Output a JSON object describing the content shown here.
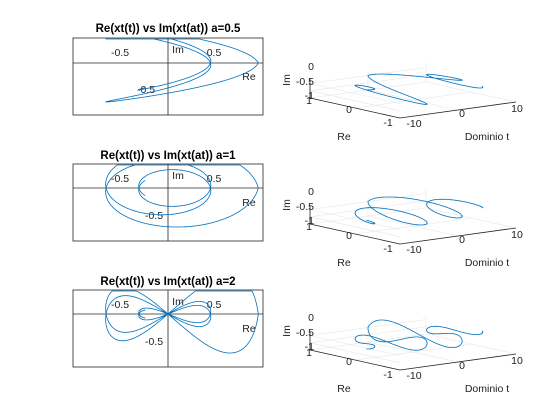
{
  "chart_data": [
    {
      "type": "line",
      "title": "Re(xt(t)) vs Im(xt(at))  a=0.5",
      "a": 0.5,
      "axis_annotations": {
        "re": "Re",
        "im": "Im"
      },
      "x_ticks": [
        "-0.5",
        "0.5"
      ],
      "y_ticks": [
        "-0.5"
      ],
      "xlim": [
        -1,
        1
      ],
      "ylim": [
        -1,
        0.5
      ]
    },
    {
      "type": "line",
      "title": "Re(xt(t)) vs Im(xt(at))  a=1",
      "a": 1,
      "axis_annotations": {
        "re": "Re",
        "im": "Im"
      },
      "x_ticks": [
        "-0.5",
        "0.5"
      ],
      "y_ticks": [
        "-0.5"
      ],
      "xlim": [
        -1,
        1
      ],
      "ylim": [
        -1,
        0.5
      ]
    },
    {
      "type": "line",
      "title": "Re(xt(t)) vs Im(xt(at))  a=2",
      "a": 2,
      "axis_annotations": {
        "re": "Re",
        "im": "Im"
      },
      "x_ticks": [
        "-0.5",
        "0.5"
      ],
      "y_ticks": [
        "-0.5"
      ],
      "xlim": [
        -1,
        1
      ],
      "ylim": [
        -1,
        0.5
      ]
    },
    {
      "type": "line3d",
      "a": 0.5,
      "xlabel": "Re",
      "ylabel": "Dominio t",
      "zlabel": "Im",
      "re_ticks": [
        "1",
        "0",
        "-1"
      ],
      "t_ticks": [
        "-10",
        "0",
        "10"
      ],
      "im_ticks": [
        "0",
        "-0.5",
        "-1"
      ]
    },
    {
      "type": "line3d",
      "a": 1,
      "xlabel": "Re",
      "ylabel": "Dominio t",
      "zlabel": "Im",
      "re_ticks": [
        "1",
        "0",
        "-1"
      ],
      "t_ticks": [
        "-10",
        "0",
        "10"
      ],
      "im_ticks": [
        "0",
        "-0.5",
        "-1"
      ]
    },
    {
      "type": "line3d",
      "a": 2,
      "xlabel": "Re",
      "ylabel": "Dominio t",
      "zlabel": "Im",
      "re_ticks": [
        "1",
        "0",
        "-1"
      ],
      "t_ticks": [
        "-10",
        "0",
        "10"
      ],
      "im_ticks": [
        "0",
        "-0.5",
        "-1"
      ]
    }
  ],
  "colors": {
    "curve": "#0072bd",
    "axes": "#262626",
    "background": "#ffffff"
  }
}
